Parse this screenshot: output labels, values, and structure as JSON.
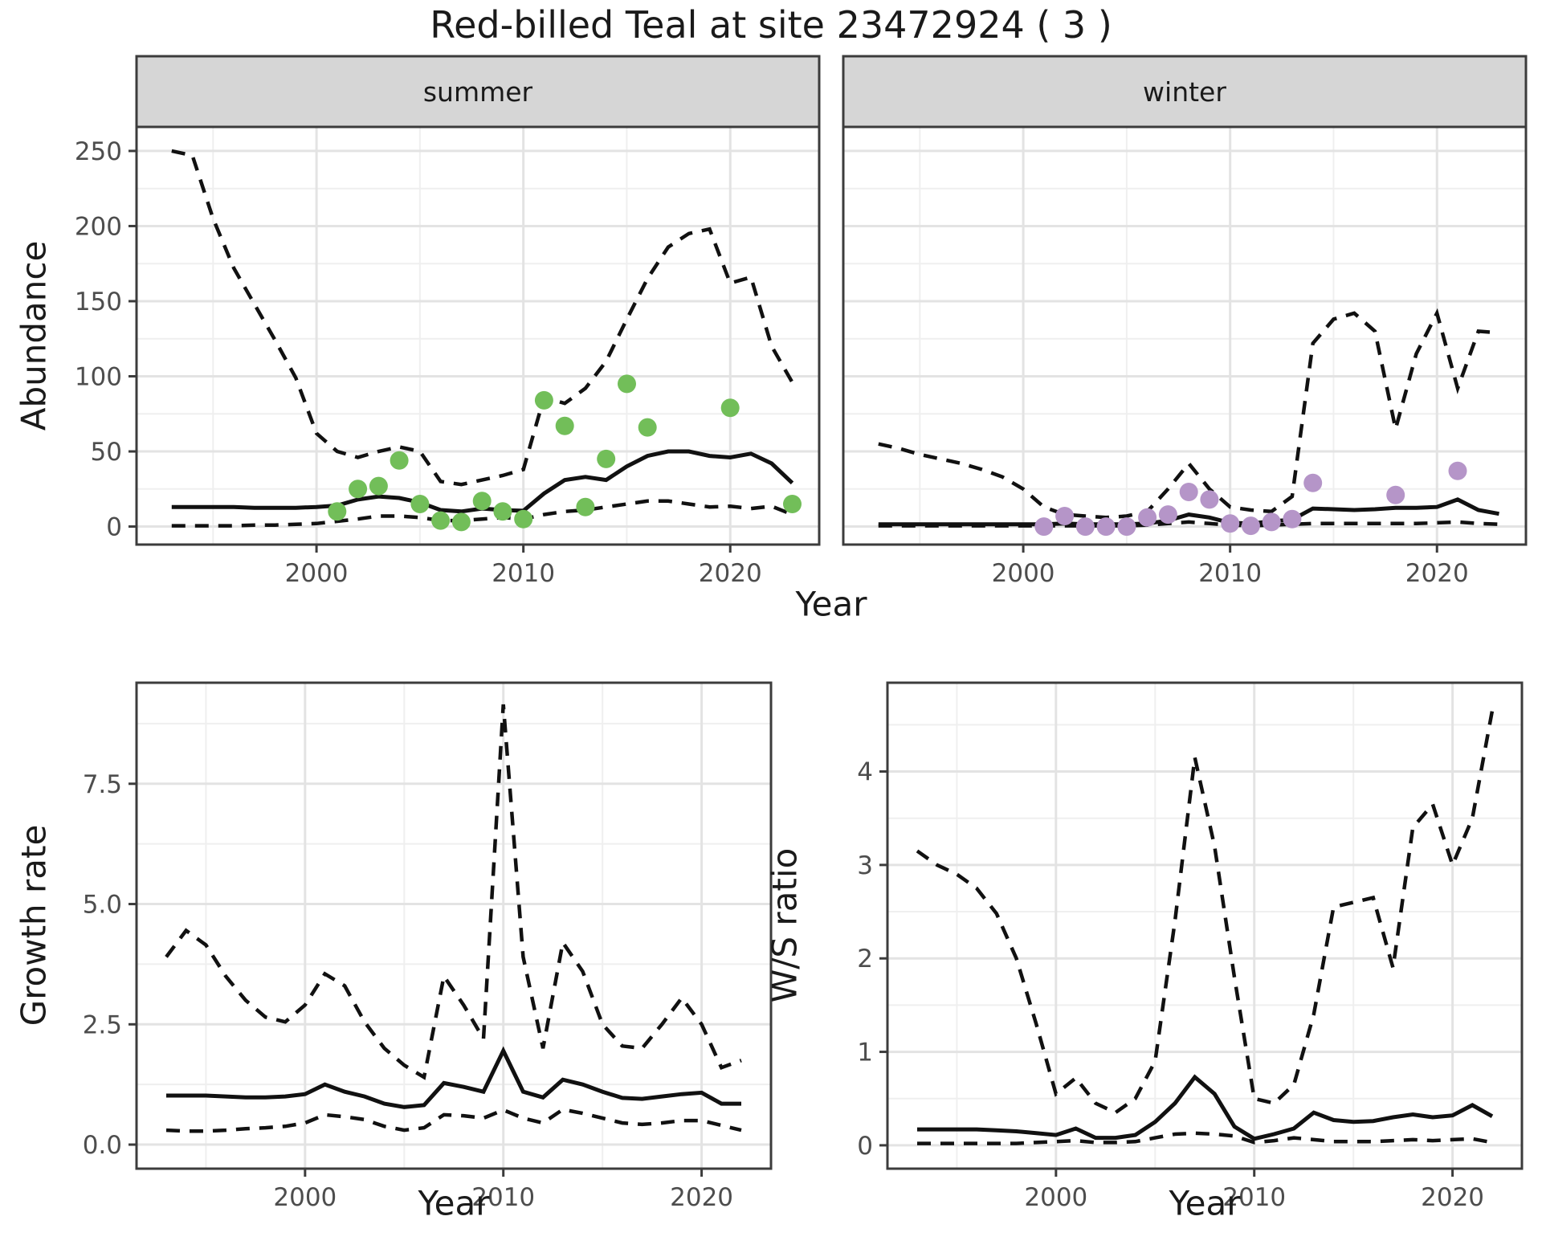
{
  "title": "Red-billed Teal at site 23472924 ( 3 )",
  "labels": {
    "year": "Year",
    "abundance": "Abundance",
    "growth_rate": "Growth rate",
    "ws_ratio": "W/S ratio"
  },
  "colors": {
    "background": "#ffffff",
    "panel_bg": "#ffffff",
    "panel_border": "#3c3c3c",
    "grid_major": "#e3e3e3",
    "grid_minor": "#efefef",
    "strip_bg": "#d6d6d6",
    "strip_text": "#1a1a1a",
    "line": "#111111",
    "tick_label": "#4d4d4d",
    "summer_point": "#72be59",
    "winter_point": "#b595c8"
  },
  "chart_data": [
    {
      "id": "abundance-summer",
      "type": "line",
      "panel": "summer",
      "strip": "summer",
      "ylabel": "Abundance",
      "xlabel": "Year",
      "xlim": [
        1991.3,
        2024.3
      ],
      "ylim": [
        -12,
        266
      ],
      "xticks": [
        2000,
        2010,
        2020
      ],
      "xticklabels": [
        "2000",
        "2010",
        "2020"
      ],
      "yticks": [
        0,
        50,
        100,
        150,
        200,
        250
      ],
      "yticklabels": [
        "0",
        "50",
        "100",
        "150",
        "200",
        "250"
      ],
      "show_y_tick_labels": true,
      "x": [
        1993,
        1994,
        1995,
        1996,
        1997,
        1998,
        1999,
        2000,
        2001,
        2002,
        2003,
        2004,
        2005,
        2006,
        2007,
        2008,
        2009,
        2010,
        2011,
        2012,
        2013,
        2014,
        2015,
        2016,
        2017,
        2018,
        2019,
        2020,
        2021,
        2022,
        2023
      ],
      "series": [
        {
          "name": "ci-upper",
          "style": "dashed",
          "values": [
            250,
            247,
            205,
            172,
            148,
            124,
            99,
            62,
            50,
            46,
            50,
            53,
            50,
            30,
            28,
            31,
            34,
            38,
            86,
            82,
            92,
            110,
            138,
            165,
            186,
            195,
            198,
            162,
            166,
            120,
            96
          ]
        },
        {
          "name": "ci-lower",
          "style": "dashed",
          "values": [
            0.5,
            0.5,
            0.5,
            0.5,
            1,
            1,
            1.5,
            2,
            3.5,
            5,
            7,
            7,
            6,
            4,
            4,
            5,
            6,
            5,
            8,
            10,
            11,
            13,
            15,
            17,
            17,
            15,
            13,
            13.5,
            12,
            13.5,
            8
          ]
        },
        {
          "name": "median",
          "style": "solid",
          "values": [
            13,
            13,
            13,
            13,
            12.5,
            12.5,
            12.5,
            13,
            14,
            18,
            20,
            19,
            16,
            11,
            10,
            12,
            11,
            10.5,
            22,
            31,
            33,
            31,
            40,
            47,
            50,
            50,
            47,
            46,
            48.5,
            42,
            29
          ]
        }
      ],
      "points": {
        "name": "observed-summer-counts",
        "color_key": "summer_point",
        "x": [
          2001,
          2002,
          2003,
          2004,
          2005,
          2006,
          2007,
          2008,
          2009,
          2010,
          2011,
          2012,
          2013,
          2014,
          2015,
          2016,
          2020,
          2023
        ],
        "y": [
          10,
          25,
          27,
          44,
          15,
          4,
          3,
          17,
          10,
          5,
          84,
          67,
          13,
          45,
          95,
          66,
          79,
          15
        ]
      }
    },
    {
      "id": "abundance-winter",
      "type": "line",
      "panel": "winter",
      "strip": "winter",
      "ylabel": "Abundance",
      "xlabel": "Year",
      "xlim": [
        1991.3,
        2024.3
      ],
      "ylim": [
        -12,
        266
      ],
      "xticks": [
        2000,
        2010,
        2020
      ],
      "xticklabels": [
        "2000",
        "2010",
        "2020"
      ],
      "yticks": [
        0,
        50,
        100,
        150,
        200,
        250
      ],
      "yticklabels": [
        "0",
        "50",
        "100",
        "150",
        "200",
        "250"
      ],
      "show_y_tick_labels": false,
      "x": [
        1993,
        1994,
        1995,
        1996,
        1997,
        1998,
        1999,
        2000,
        2001,
        2002,
        2003,
        2004,
        2005,
        2006,
        2007,
        2008,
        2009,
        2010,
        2011,
        2012,
        2013,
        2014,
        2015,
        2016,
        2017,
        2018,
        2019,
        2020,
        2021,
        2022,
        2023
      ],
      "series": [
        {
          "name": "ci-upper",
          "style": "dashed",
          "values": [
            55,
            52,
            48,
            45,
            42,
            38,
            33,
            25,
            13,
            8,
            7,
            6,
            7,
            10,
            25,
            42,
            25,
            13,
            11,
            10,
            20,
            122,
            138,
            142,
            130,
            65,
            115,
            142,
            92,
            130,
            129
          ]
        },
        {
          "name": "ci-lower",
          "style": "dashed",
          "values": [
            0.5,
            0.5,
            0.5,
            0.5,
            0.5,
            0.5,
            0.5,
            0.5,
            0.5,
            0.5,
            0.5,
            0.5,
            0.5,
            1,
            2,
            3,
            2,
            1,
            0.5,
            1,
            1.5,
            2,
            2,
            2,
            2,
            2,
            2,
            2.5,
            3,
            2,
            1.5
          ]
        },
        {
          "name": "median",
          "style": "solid",
          "values": [
            1.5,
            1.5,
            1.5,
            1.5,
            1.5,
            1.5,
            1.5,
            1.5,
            1.5,
            2,
            1.5,
            1.5,
            1.5,
            2,
            4,
            8,
            6,
            2.5,
            2,
            3.5,
            4.5,
            12,
            11.5,
            11,
            11.5,
            12.5,
            12.5,
            13,
            18,
            11,
            8.5
          ]
        }
      ],
      "points": {
        "name": "observed-winter-counts",
        "color_key": "winter_point",
        "x": [
          2001,
          2002,
          2003,
          2004,
          2005,
          2006,
          2007,
          2008,
          2009,
          2010,
          2011,
          2012,
          2013,
          2014,
          2018,
          2021
        ],
        "y": [
          0,
          7,
          0,
          0,
          0,
          6,
          8,
          23,
          18,
          2,
          0.5,
          3,
          5,
          29,
          21,
          37
        ]
      }
    },
    {
      "id": "growth-rate",
      "type": "line",
      "panel": "growth",
      "strip": null,
      "ylabel": "Growth rate",
      "xlabel": "Year",
      "xlim": [
        1991.5,
        2023.5
      ],
      "ylim": [
        -0.5,
        9.6
      ],
      "xticks": [
        2000,
        2010,
        2020
      ],
      "xticklabels": [
        "2000",
        "2010",
        "2020"
      ],
      "yticks": [
        0,
        2.5,
        5,
        7.5
      ],
      "yticklabels": [
        "0.0",
        "2.5",
        "5.0",
        "7.5"
      ],
      "show_y_tick_labels": true,
      "x": [
        1993,
        1994,
        1995,
        1996,
        1997,
        1998,
        1999,
        2000,
        2001,
        2002,
        2003,
        2004,
        2005,
        2006,
        2007,
        2008,
        2009,
        2010,
        2011,
        2012,
        2013,
        2014,
        2015,
        2016,
        2017,
        2018,
        2019,
        2020,
        2021,
        2022
      ],
      "series": [
        {
          "name": "ci-upper",
          "style": "dashed",
          "values": [
            3.9,
            4.45,
            4.15,
            3.5,
            3.0,
            2.65,
            2.55,
            2.9,
            3.55,
            3.3,
            2.55,
            2.0,
            1.65,
            1.4,
            3.5,
            2.9,
            2.2,
            9.15,
            3.9,
            2.0,
            4.2,
            3.6,
            2.5,
            2.05,
            2.0,
            2.5,
            3.05,
            2.5,
            1.6,
            1.75
          ]
        },
        {
          "name": "ci-lower",
          "style": "dashed",
          "values": [
            0.3,
            0.28,
            0.28,
            0.3,
            0.33,
            0.35,
            0.38,
            0.45,
            0.62,
            0.58,
            0.52,
            0.38,
            0.3,
            0.35,
            0.62,
            0.6,
            0.55,
            0.72,
            0.55,
            0.45,
            0.73,
            0.65,
            0.55,
            0.45,
            0.42,
            0.45,
            0.5,
            0.5,
            0.4,
            0.3
          ]
        },
        {
          "name": "median",
          "style": "solid",
          "values": [
            1.02,
            1.02,
            1.02,
            1.0,
            0.98,
            0.98,
            1.0,
            1.05,
            1.25,
            1.1,
            1.0,
            0.85,
            0.78,
            0.82,
            1.28,
            1.2,
            1.1,
            1.95,
            1.1,
            0.98,
            1.35,
            1.25,
            1.1,
            0.97,
            0.95,
            1.0,
            1.05,
            1.08,
            0.85,
            0.85
          ]
        }
      ],
      "points": null
    },
    {
      "id": "ws-ratio",
      "type": "line",
      "panel": "ws",
      "strip": null,
      "ylabel": "W/S ratio",
      "xlabel": "Year",
      "xlim": [
        1991.5,
        2023.5
      ],
      "ylim": [
        -0.25,
        4.95
      ],
      "xticks": [
        2000,
        2010,
        2020
      ],
      "xticklabels": [
        "2000",
        "2010",
        "2020"
      ],
      "yticks": [
        0,
        1,
        2,
        3,
        4
      ],
      "yticklabels": [
        "0",
        "1",
        "2",
        "3",
        "4"
      ],
      "show_y_tick_labels": true,
      "x": [
        1993,
        1994,
        1995,
        1996,
        1997,
        1998,
        1999,
        2000,
        2001,
        2002,
        2003,
        2004,
        2005,
        2006,
        2007,
        2008,
        2009,
        2010,
        2011,
        2012,
        2013,
        2014,
        2015,
        2016,
        2017,
        2018,
        2019,
        2020,
        2021,
        2022
      ],
      "series": [
        {
          "name": "ci-upper",
          "style": "dashed",
          "values": [
            3.15,
            3.0,
            2.9,
            2.75,
            2.48,
            2.0,
            1.3,
            0.55,
            0.72,
            0.45,
            0.35,
            0.5,
            0.9,
            2.4,
            4.15,
            3.2,
            1.8,
            0.5,
            0.45,
            0.65,
            1.4,
            2.55,
            2.6,
            2.65,
            1.9,
            3.4,
            3.65,
            3.0,
            3.5,
            4.65
          ]
        },
        {
          "name": "ci-lower",
          "style": "dashed",
          "values": [
            0.02,
            0.02,
            0.02,
            0.02,
            0.02,
            0.02,
            0.03,
            0.04,
            0.05,
            0.03,
            0.03,
            0.04,
            0.08,
            0.12,
            0.13,
            0.12,
            0.1,
            0.03,
            0.05,
            0.08,
            0.06,
            0.04,
            0.04,
            0.04,
            0.05,
            0.06,
            0.05,
            0.06,
            0.07,
            0.03
          ]
        },
        {
          "name": "median",
          "style": "solid",
          "values": [
            0.17,
            0.17,
            0.17,
            0.17,
            0.16,
            0.15,
            0.13,
            0.11,
            0.18,
            0.08,
            0.08,
            0.11,
            0.25,
            0.45,
            0.73,
            0.55,
            0.2,
            0.07,
            0.12,
            0.18,
            0.35,
            0.27,
            0.25,
            0.26,
            0.3,
            0.33,
            0.3,
            0.32,
            0.43,
            0.31
          ]
        }
      ],
      "points": null
    }
  ]
}
